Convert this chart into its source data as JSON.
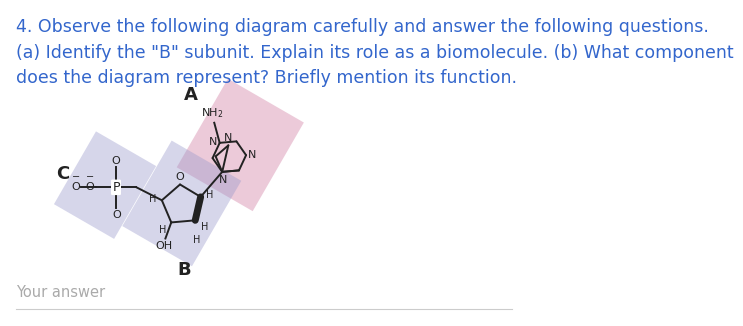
{
  "title_text": "4. Observe the following diagram carefully and answer the following questions.\n(a) Identify the \"B\" subunit. Explain its role as a biomolecule. (b) What component\ndoes the diagram represent? Briefly mention its function.",
  "title_color": "#3366cc",
  "title_fontsize": 12.5,
  "background_color": "#ffffff",
  "your_answer_text": "Your answer",
  "label_A": "A",
  "label_B": "B",
  "label_C": "C",
  "adenine_bg_color": "#dda0bb",
  "adenine_bg_alpha": 0.55,
  "sugar_bg_color": "#9999cc",
  "sugar_bg_alpha": 0.4,
  "phosphate_bg_color": "#9999cc",
  "phosphate_bg_alpha": 0.4,
  "mol_color": "#222222",
  "lw": 1.4,
  "fs": 8.0
}
